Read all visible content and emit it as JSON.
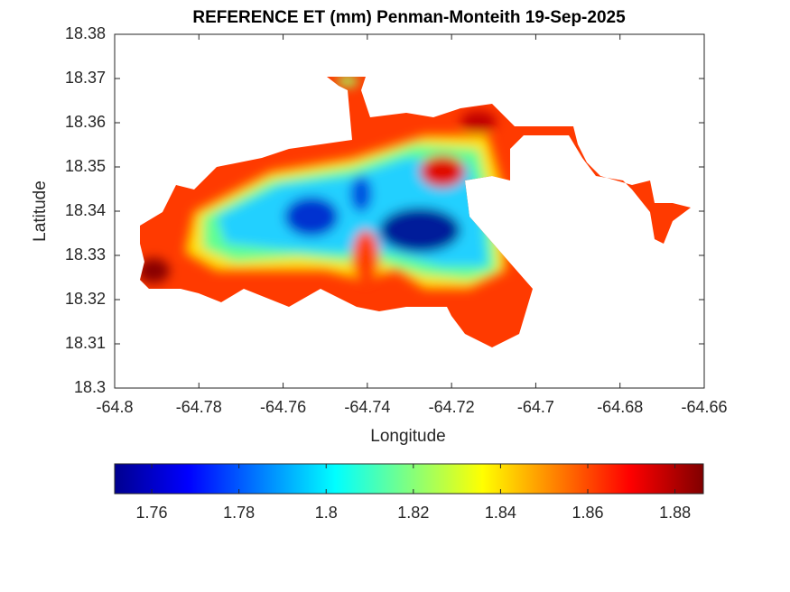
{
  "chart_data": {
    "type": "map",
    "title": "REFERENCE ET (mm) Penman-Monteith 19-Sep-2025",
    "x_label": "Longitude",
    "y_label": "Latitude",
    "xlim": [
      -64.8,
      -64.66
    ],
    "xticks": [
      -64.8,
      -64.78,
      -64.76,
      -64.74,
      -64.72,
      -64.7,
      -64.68,
      -64.66
    ],
    "ylim": [
      18.3,
      18.38
    ],
    "yticks": [
      18.3,
      18.31,
      18.32,
      18.33,
      18.34,
      18.35,
      18.36,
      18.37,
      18.38
    ],
    "colorbar": {
      "clim": [
        1.7515,
        1.8865
      ],
      "ticks": [
        1.76,
        1.78,
        1.8,
        1.82,
        1.84,
        1.86,
        1.88
      ],
      "colormap": "jet"
    }
  }
}
